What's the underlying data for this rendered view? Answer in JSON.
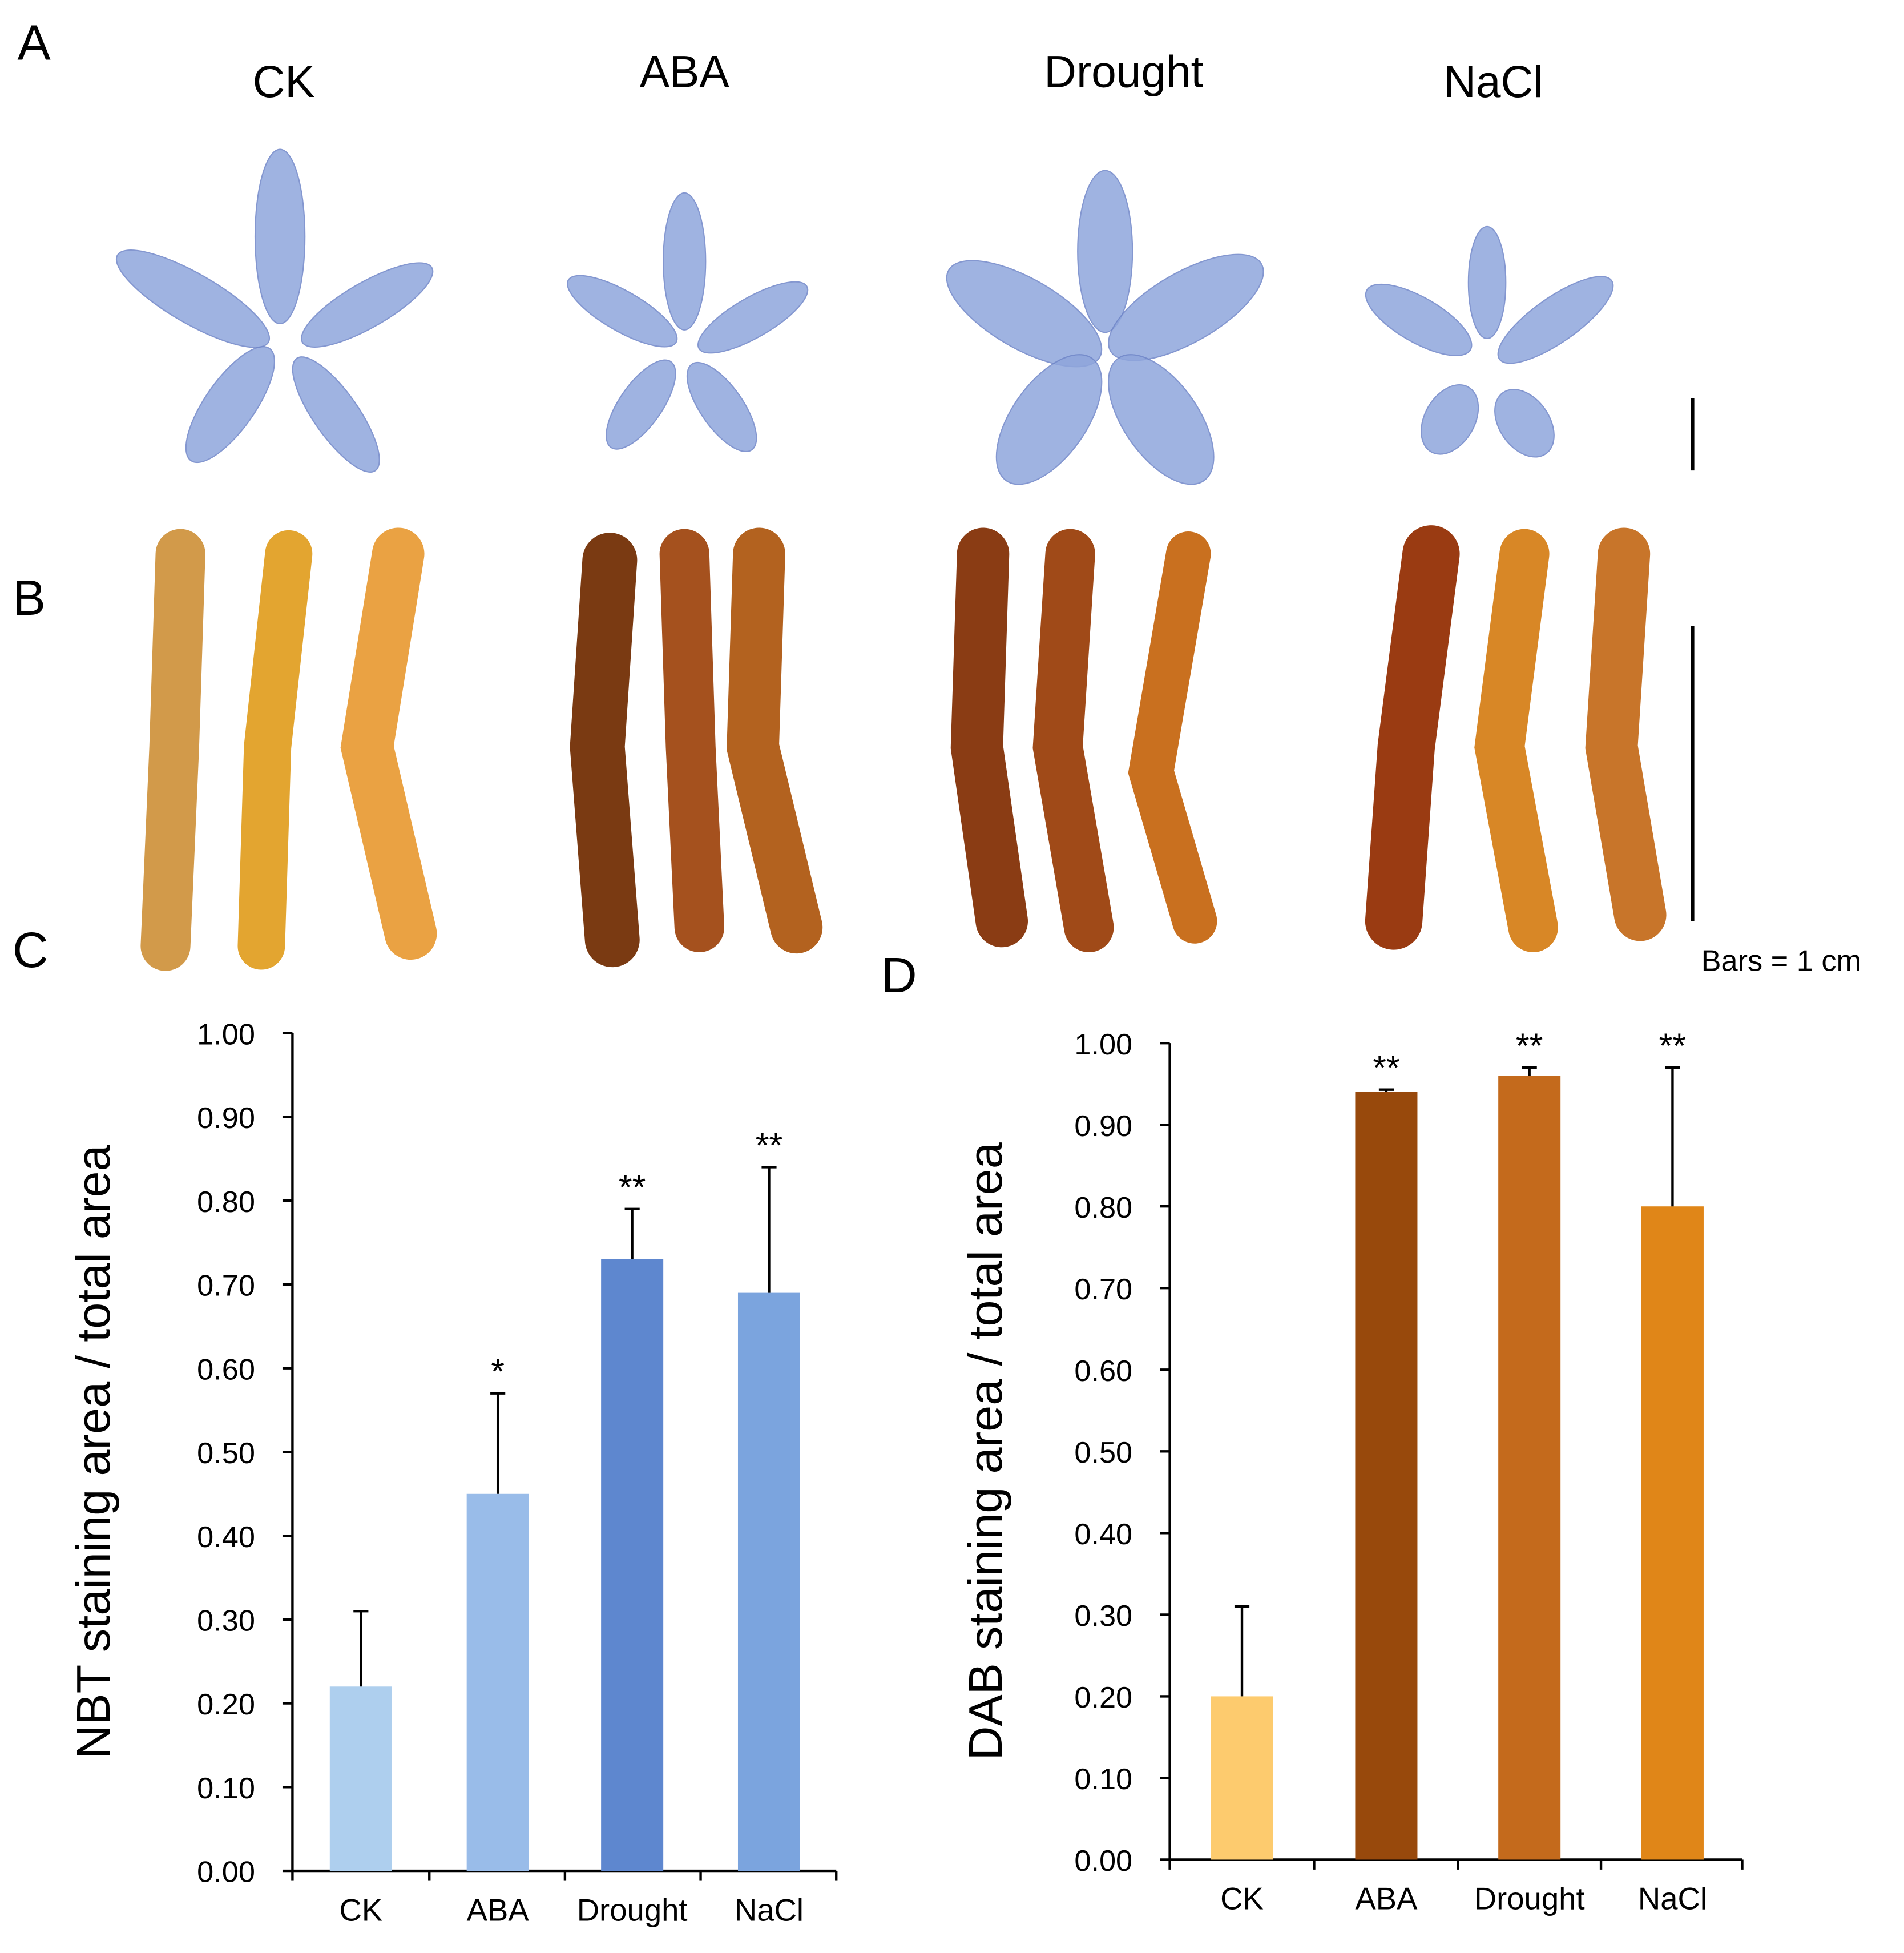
{
  "panel_labels": [
    "A",
    "B",
    "C",
    "D"
  ],
  "treatments": [
    "CK",
    "ABA",
    "Drought",
    "NaCl"
  ],
  "scale_bar_label": "Bars = 1 cm",
  "chart_data": [
    {
      "type": "bar",
      "y_label": "NBT staining area / total area",
      "categories": [
        "CK",
        "ABA",
        "Drought",
        "NaCl"
      ],
      "values": [
        0.22,
        0.45,
        0.73,
        0.69
      ],
      "errors": [
        0.09,
        0.12,
        0.06,
        0.15
      ],
      "annotations": [
        null,
        "*",
        "**",
        "**"
      ],
      "colors": [
        "#aecfee",
        "#99bce9",
        "#5e87cf",
        "#7ba4de"
      ],
      "ylim": [
        0,
        1
      ],
      "yticks": [
        {
          "value": 0,
          "label": "0.00"
        },
        {
          "value": 0.1,
          "label": "0.10"
        },
        {
          "value": 0.2,
          "label": "0.20"
        },
        {
          "value": 0.3,
          "label": "0.30"
        },
        {
          "value": 0.4,
          "label": "0.40"
        },
        {
          "value": 0.5,
          "label": "0.50"
        },
        {
          "value": 0.6,
          "label": "0.60"
        },
        {
          "value": 0.7,
          "label": "0.70"
        },
        {
          "value": 0.8,
          "label": "0.80"
        },
        {
          "value": 0.9,
          "label": "0.90"
        },
        {
          "value": 1,
          "label": "1.00"
        }
      ],
      "grid": false
    },
    {
      "type": "bar",
      "y_label": "DAB staining area / total area",
      "categories": [
        "CK",
        "ABA",
        "Drought",
        "NaCl"
      ],
      "values": [
        0.2,
        0.94,
        0.96,
        0.8
      ],
      "errors": [
        0.11,
        0.003,
        0.01,
        0.17
      ],
      "annotations": [
        null,
        "**",
        "**",
        "**"
      ],
      "colors": [
        "#fdcb6e",
        "#98490c",
        "#c46a1c",
        "#e08618"
      ],
      "ylim": [
        0,
        1
      ],
      "yticks": [
        {
          "value": 0,
          "label": "0.00"
        },
        {
          "value": 0.1,
          "label": "0.10"
        },
        {
          "value": 0.2,
          "label": "0.20"
        },
        {
          "value": 0.3,
          "label": "0.30"
        },
        {
          "value": 0.4,
          "label": "0.40"
        },
        {
          "value": 0.5,
          "label": "0.50"
        },
        {
          "value": 0.6,
          "label": "0.60"
        },
        {
          "value": 0.7,
          "label": "0.70"
        },
        {
          "value": 0.8,
          "label": "0.80"
        },
        {
          "value": 0.9,
          "label": "0.90"
        },
        {
          "value": 1,
          "label": "1.00"
        }
      ],
      "grid": false
    }
  ]
}
